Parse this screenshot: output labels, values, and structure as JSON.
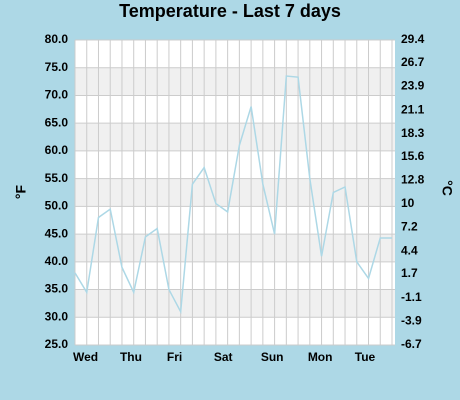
{
  "chart_data": {
    "type": "line",
    "title": "Temperature - Last 7 days",
    "y_label": "°F",
    "y2_label": "°C",
    "categories": [
      "Wed",
      null,
      null,
      null,
      "Thu",
      null,
      null,
      null,
      "Fri",
      null,
      null,
      null,
      "Sat",
      null,
      null,
      null,
      "Sun",
      null,
      null,
      null,
      "Mon",
      null,
      null,
      null,
      "Tue",
      null,
      null,
      null
    ],
    "series": [
      {
        "color": "#add8e6",
        "values": [
          38,
          34.5,
          48,
          49.5,
          39,
          34.5,
          44.5,
          46,
          35,
          31,
          54,
          57,
          50.5,
          49,
          61,
          68,
          54,
          45,
          73.5,
          73.3,
          55,
          41,
          52.5,
          53.5,
          40,
          37,
          44.3,
          44.3
        ]
      }
    ],
    "ylim": [
      25,
      80
    ],
    "yticks": [
      {
        "value": 25,
        "label": "25.0"
      },
      {
        "value": 30,
        "label": "30.0"
      },
      {
        "value": 35,
        "label": "35.0"
      },
      {
        "value": 40,
        "label": "40.0"
      },
      {
        "value": 45,
        "label": "45.0"
      },
      {
        "value": 50,
        "label": "50.0"
      },
      {
        "value": 55,
        "label": "55.0"
      },
      {
        "value": 60,
        "label": "60.0"
      },
      {
        "value": 65,
        "label": "65.0"
      },
      {
        "value": 70,
        "label": "70.0"
      },
      {
        "value": 75,
        "label": "75.0"
      },
      {
        "value": 80,
        "label": "80.0"
      }
    ],
    "y2lim": [
      -6.7,
      29.4
    ],
    "y2ticks": [
      29.4,
      26.7,
      23.9,
      21.1,
      18.3,
      15.6,
      12.8,
      10,
      7.2,
      4.4,
      1.7,
      -1.1,
      -3.9,
      -6.7
    ],
    "grid": true
  }
}
